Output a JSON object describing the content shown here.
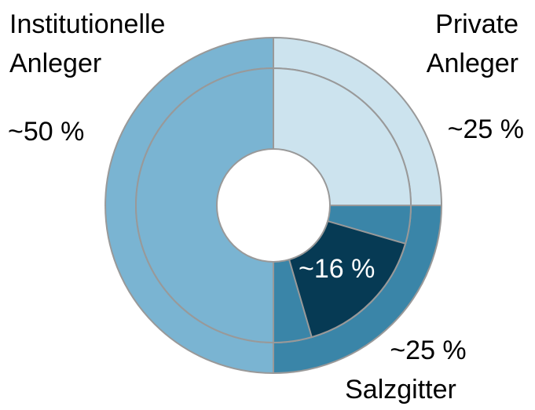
{
  "chart_data": {
    "type": "donut",
    "categories": [
      "Private Anleger",
      "Salzgitter",
      "Institutionelle Anleger"
    ],
    "values": [
      25,
      25,
      50
    ],
    "value_labels": [
      "~25 %",
      "~25 %",
      "~50 %"
    ],
    "colors": [
      "#cce3ee",
      "#3a85a8",
      "#7ab4d2"
    ],
    "highlight": {
      "value": 16,
      "value_label": "~16 %",
      "color": "#063a54"
    }
  }
}
